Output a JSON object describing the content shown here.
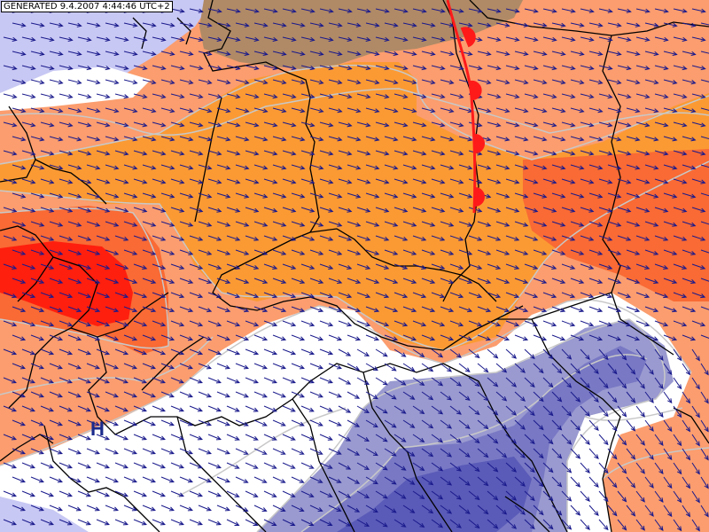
{
  "header": {
    "generated_text": "GENERATED 9.4.2007 4:44:46 UTC+2"
  },
  "map": {
    "pressure_centers": [
      {
        "symbol": "H",
        "meaning": "high-pressure-center"
      }
    ],
    "front": {
      "type": "warm-front",
      "color": "#ff1a1a"
    },
    "wind_field": {
      "glyph": "arrow",
      "color": "#1a1a8c"
    },
    "colors": {
      "borders": "#000000",
      "isolines": "#c8c8c8",
      "peach": "#fb9d6e",
      "orange": "#fb9a33",
      "warm_orange": "#f96a34",
      "red": "#ff1f0e",
      "white": "#ffffff",
      "lilac": "#c8c8f4",
      "blue_light": "#9a9ad0",
      "blue_mid": "#7878c4",
      "blue_dark": "#5a5ab8",
      "brown": "#b08a66"
    }
  }
}
